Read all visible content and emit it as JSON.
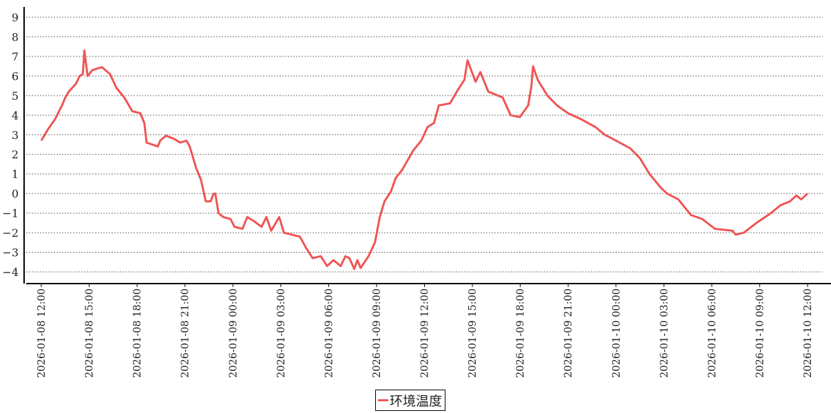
{
  "chart_data": {
    "type": "line",
    "title": "",
    "xlabel": "",
    "ylabel": "",
    "ylim": [
      -4.5,
      9.5
    ],
    "xlim": [
      "2026-01-08 11:00",
      "2026-01-10 13:00"
    ],
    "yticks": [
      -4,
      -3,
      -2,
      -1,
      0,
      1,
      2,
      3,
      4,
      5,
      6,
      7,
      8,
      9
    ],
    "xticks": [
      "2026-01-08  12:00",
      "2026-01-08  15:00",
      "2026-01-08  18:00",
      "2026-01-08  21:00",
      "2026-01-09  00:00",
      "2026-01-09  03:00",
      "2026-01-09  06:00",
      "2026-01-09  09:00",
      "2026-01-09  12:00",
      "2026-01-09  15:00",
      "2026-01-09  18:00",
      "2026-01-09  21:00",
      "2026-01-10  00:00",
      "2026-01-10  03:00",
      "2026-01-10  06:00",
      "2026-01-10  09:00",
      "2026-01-10  12:00"
    ],
    "grid": "horizontal dotted",
    "legend_placement": "bottom-center",
    "series": [
      {
        "name": "环境温度",
        "color": "#f05454",
        "points": [
          [
            "2026-01-08 12:00",
            2.7
          ],
          [
            "2026-01-08 12:26",
            3.3
          ],
          [
            "2026-01-08 12:52",
            3.8
          ],
          [
            "2026-01-08 13:18",
            4.5
          ],
          [
            "2026-01-08 13:30",
            4.9
          ],
          [
            "2026-01-08 13:43",
            5.2
          ],
          [
            "2026-01-08 14:10",
            5.6
          ],
          [
            "2026-01-08 14:24",
            6.0
          ],
          [
            "2026-01-08 14:36",
            6.1
          ],
          [
            "2026-01-08 14:42",
            7.3
          ],
          [
            "2026-01-08 14:54",
            6.0
          ],
          [
            "2026-01-08 15:12",
            6.3
          ],
          [
            "2026-01-08 15:48",
            6.45
          ],
          [
            "2026-01-08 16:18",
            6.1
          ],
          [
            "2026-01-08 16:42",
            5.4
          ],
          [
            "2026-01-08 17:12",
            4.9
          ],
          [
            "2026-01-08 17:42",
            4.2
          ],
          [
            "2026-01-08 18:12",
            4.1
          ],
          [
            "2026-01-08 18:27",
            3.6
          ],
          [
            "2026-01-08 18:36",
            2.6
          ],
          [
            "2026-01-08 18:57",
            2.5
          ],
          [
            "2026-01-08 19:18",
            2.4
          ],
          [
            "2026-01-08 19:27",
            2.7
          ],
          [
            "2026-01-08 19:48",
            2.95
          ],
          [
            "2026-01-08 20:18",
            2.8
          ],
          [
            "2026-01-08 20:42",
            2.6
          ],
          [
            "2026-01-08 21:06",
            2.7
          ],
          [
            "2026-01-08 21:18",
            2.4
          ],
          [
            "2026-01-08 21:42",
            1.3
          ],
          [
            "2026-01-08 22:00",
            0.7
          ],
          [
            "2026-01-08 22:18",
            -0.4
          ],
          [
            "2026-01-08 22:36",
            -0.4
          ],
          [
            "2026-01-08 22:48",
            0.0
          ],
          [
            "2026-01-08 22:54",
            0.0
          ],
          [
            "2026-01-08 23:06",
            -1.0
          ],
          [
            "2026-01-08 23:24",
            -1.2
          ],
          [
            "2026-01-08 23:51",
            -1.3
          ],
          [
            "2026-01-09 00:06",
            -1.7
          ],
          [
            "2026-01-09 00:36",
            -1.8
          ],
          [
            "2026-01-09 00:54",
            -1.2
          ],
          [
            "2026-01-09 01:18",
            -1.4
          ],
          [
            "2026-01-09 01:48",
            -1.7
          ],
          [
            "2026-01-09 02:06",
            -1.2
          ],
          [
            "2026-01-09 02:24",
            -1.9
          ],
          [
            "2026-01-09 02:54",
            -1.2
          ],
          [
            "2026-01-09 03:12",
            -2.0
          ],
          [
            "2026-01-09 03:42",
            -2.1
          ],
          [
            "2026-01-09 04:12",
            -2.2
          ],
          [
            "2026-01-09 04:36",
            -2.8
          ],
          [
            "2026-01-09 05:00",
            -3.3
          ],
          [
            "2026-01-09 05:30",
            -3.2
          ],
          [
            "2026-01-09 05:54",
            -3.7
          ],
          [
            "2026-01-09 06:18",
            -3.4
          ],
          [
            "2026-01-09 06:45",
            -3.7
          ],
          [
            "2026-01-09 07:03",
            -3.2
          ],
          [
            "2026-01-09 07:18",
            -3.3
          ],
          [
            "2026-01-09 07:36",
            -3.85
          ],
          [
            "2026-01-09 07:48",
            -3.4
          ],
          [
            "2026-01-09 08:00",
            -3.8
          ],
          [
            "2026-01-09 08:30",
            -3.2
          ],
          [
            "2026-01-09 08:54",
            -2.5
          ],
          [
            "2026-01-09 09:12",
            -1.2
          ],
          [
            "2026-01-09 09:30",
            -0.4
          ],
          [
            "2026-01-09 09:54",
            0.1
          ],
          [
            "2026-01-09 10:12",
            0.8
          ],
          [
            "2026-01-09 10:36",
            1.2
          ],
          [
            "2026-01-09 11:18",
            2.2
          ],
          [
            "2026-01-09 11:48",
            2.7
          ],
          [
            "2026-01-09 12:12",
            3.4
          ],
          [
            "2026-01-09 12:36",
            3.6
          ],
          [
            "2026-01-09 12:54",
            4.5
          ],
          [
            "2026-01-09 13:36",
            4.6
          ],
          [
            "2026-01-09 14:06",
            5.3
          ],
          [
            "2026-01-09 14:30",
            5.8
          ],
          [
            "2026-01-09 14:42",
            6.8
          ],
          [
            "2026-01-09 15:12",
            5.7
          ],
          [
            "2026-01-09 15:30",
            6.2
          ],
          [
            "2026-01-09 16:00",
            5.2
          ],
          [
            "2026-01-09 16:54",
            4.9
          ],
          [
            "2026-01-09 17:24",
            4.0
          ],
          [
            "2026-01-09 17:58",
            3.9
          ],
          [
            "2026-01-09 18:30",
            4.5
          ],
          [
            "2026-01-09 18:42",
            5.5
          ],
          [
            "2026-01-09 18:48",
            6.5
          ],
          [
            "2026-01-09 19:06",
            5.8
          ],
          [
            "2026-01-09 19:42",
            5.0
          ],
          [
            "2026-01-09 20:18",
            4.5
          ],
          [
            "2026-01-09 21:00",
            4.1
          ],
          [
            "2026-01-09 21:48",
            3.8
          ],
          [
            "2026-01-09 22:42",
            3.4
          ],
          [
            "2026-01-09 23:18",
            3.0
          ],
          [
            "2026-01-10 00:00",
            2.7
          ],
          [
            "2026-01-10 00:54",
            2.3
          ],
          [
            "2026-01-10 01:30",
            1.8
          ],
          [
            "2026-01-10 02:06",
            1.0
          ],
          [
            "2026-01-10 02:48",
            0.3
          ],
          [
            "2026-01-10 03:12",
            0.0
          ],
          [
            "2026-01-10 03:54",
            -0.3
          ],
          [
            "2026-01-10 04:42",
            -1.1
          ],
          [
            "2026-01-10 05:24",
            -1.3
          ],
          [
            "2026-01-10 06:12",
            -1.8
          ],
          [
            "2026-01-10 07:18",
            -1.9
          ],
          [
            "2026-01-10 07:30",
            -2.1
          ],
          [
            "2026-01-10 08:00",
            -2.0
          ],
          [
            "2026-01-10 08:48",
            -1.5
          ],
          [
            "2026-01-10 09:42",
            -1.0
          ],
          [
            "2026-01-10 10:18",
            -0.6
          ],
          [
            "2026-01-10 10:54",
            -0.4
          ],
          [
            "2026-01-10 11:18",
            -0.1
          ],
          [
            "2026-01-10 11:36",
            -0.3
          ],
          [
            "2026-01-10 12:00",
            0.0
          ]
        ]
      }
    ]
  },
  "legend": {
    "label": "环境温度"
  }
}
